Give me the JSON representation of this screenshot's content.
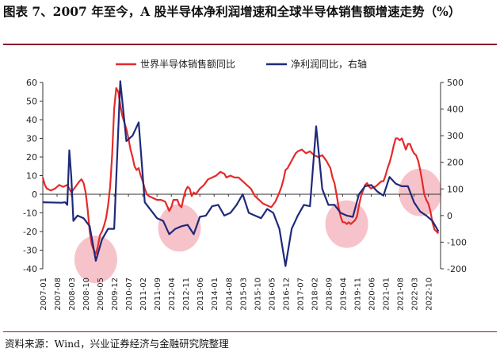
{
  "title": "图表 7、2007 年至今，A 股半导体净利润增速和全球半导体销售额增速走势（%）",
  "source": "资料来源：Wind，兴业证券经济与金融研究院整理",
  "chart_data": {
    "type": "line",
    "legend": [
      "世界半导体销售额同比",
      "净利润同比，右轴"
    ],
    "legend_placement": "top",
    "colors": {
      "sales": "#e52a2a",
      "profit": "#1e2a7a",
      "highlight": "#f6b8c1"
    },
    "left_axis": {
      "ylim": [
        -40,
        60
      ],
      "ticks": [
        -40,
        -30,
        -20,
        -10,
        0,
        10,
        20,
        30,
        40,
        50,
        60
      ]
    },
    "right_axis": {
      "ylim": [
        -200,
        500
      ],
      "ticks": [
        -200,
        -100,
        0,
        100,
        200,
        300,
        400,
        500
      ]
    },
    "x_ticks": [
      "2007-01",
      "2007-08",
      "2008-03",
      "2008-10",
      "2009-05",
      "2009-12",
      "2010-07",
      "2011-02",
      "2011-09",
      "2012-04",
      "2012-11",
      "2013-06",
      "2014-01",
      "2014-08",
      "2015-03",
      "2015-10",
      "2016-05",
      "2016-12",
      "2017-07",
      "2018-02",
      "2018-09",
      "2019-04",
      "2019-11",
      "2020-06",
      "2021-01",
      "2021-08",
      "2022-03",
      "2022-10"
    ],
    "highlight_circles": [
      {
        "x": "2009-03",
        "y_left": -35
      },
      {
        "x": "2012-08",
        "y_left": -18
      },
      {
        "x": "2019-06",
        "y_left": -16
      },
      {
        "x": "2022-06",
        "y_left": 1
      }
    ],
    "series": [
      {
        "name": "世界半导体销售额同比",
        "axis": "left",
        "points": [
          [
            "2007-01",
            9
          ],
          [
            "2007-02",
            5
          ],
          [
            "2007-03",
            3
          ],
          [
            "2007-05",
            2
          ],
          [
            "2007-07",
            3
          ],
          [
            "2007-09",
            5
          ],
          [
            "2007-11",
            4
          ],
          [
            "2008-01",
            5
          ],
          [
            "2008-03",
            1
          ],
          [
            "2008-05",
            4
          ],
          [
            "2008-07",
            7
          ],
          [
            "2008-08",
            8
          ],
          [
            "2008-09",
            6
          ],
          [
            "2008-10",
            1
          ],
          [
            "2008-11",
            -8
          ],
          [
            "2008-12",
            -20
          ],
          [
            "2009-01",
            -27
          ],
          [
            "2009-02",
            -30
          ],
          [
            "2009-03",
            -32
          ],
          [
            "2009-04",
            -28
          ],
          [
            "2009-05",
            -22
          ],
          [
            "2009-06",
            -20
          ],
          [
            "2009-07",
            -17
          ],
          [
            "2009-08",
            -13
          ],
          [
            "2009-09",
            -6
          ],
          [
            "2009-10",
            4
          ],
          [
            "2009-11",
            21
          ],
          [
            "2009-12",
            46
          ],
          [
            "2010-01",
            57
          ],
          [
            "2010-02",
            55
          ],
          [
            "2010-03",
            48
          ],
          [
            "2010-04",
            42
          ],
          [
            "2010-06",
            35
          ],
          [
            "2010-07",
            30
          ],
          [
            "2010-08",
            24
          ],
          [
            "2010-09",
            20
          ],
          [
            "2010-10",
            15
          ],
          [
            "2010-11",
            13
          ],
          [
            "2010-12",
            14
          ],
          [
            "2011-01",
            10
          ],
          [
            "2011-02",
            7
          ],
          [
            "2011-03",
            3
          ],
          [
            "2011-04",
            0
          ],
          [
            "2011-05",
            -1
          ],
          [
            "2011-07",
            -2
          ],
          [
            "2011-09",
            -3
          ],
          [
            "2011-11",
            -3
          ],
          [
            "2012-01",
            -4
          ],
          [
            "2012-03",
            -9
          ],
          [
            "2012-04",
            -7
          ],
          [
            "2012-05",
            -3
          ],
          [
            "2012-07",
            -3
          ],
          [
            "2012-08",
            -6
          ],
          [
            "2012-09",
            -7
          ],
          [
            "2012-10",
            -2
          ],
          [
            "2012-11",
            2
          ],
          [
            "2012-12",
            4
          ],
          [
            "2013-01",
            3
          ],
          [
            "2013-02",
            -1
          ],
          [
            "2013-03",
            1
          ],
          [
            "2013-04",
            0
          ],
          [
            "2013-06",
            3
          ],
          [
            "2013-08",
            5
          ],
          [
            "2013-10",
            8
          ],
          [
            "2013-12",
            9
          ],
          [
            "2014-02",
            10
          ],
          [
            "2014-04",
            12
          ],
          [
            "2014-06",
            11
          ],
          [
            "2014-07",
            9
          ],
          [
            "2014-09",
            10
          ],
          [
            "2014-11",
            9
          ],
          [
            "2015-01",
            9
          ],
          [
            "2015-03",
            7
          ],
          [
            "2015-05",
            5
          ],
          [
            "2015-07",
            3
          ],
          [
            "2015-09",
            -1
          ],
          [
            "2015-11",
            -3
          ],
          [
            "2016-01",
            -5
          ],
          [
            "2016-03",
            -6
          ],
          [
            "2016-05",
            -7
          ],
          [
            "2016-07",
            -4
          ],
          [
            "2016-09",
            1
          ],
          [
            "2016-10",
            4
          ],
          [
            "2016-11",
            8
          ],
          [
            "2016-12",
            13
          ],
          [
            "2017-01",
            14
          ],
          [
            "2017-02",
            16
          ],
          [
            "2017-04",
            20
          ],
          [
            "2017-05",
            22
          ],
          [
            "2017-06",
            23
          ],
          [
            "2017-08",
            24
          ],
          [
            "2017-10",
            22
          ],
          [
            "2017-12",
            23
          ],
          [
            "2018-02",
            21
          ],
          [
            "2018-04",
            20
          ],
          [
            "2018-06",
            21
          ],
          [
            "2018-08",
            18
          ],
          [
            "2018-10",
            14
          ],
          [
            "2018-11",
            9
          ],
          [
            "2018-12",
            6
          ],
          [
            "2019-01",
            0
          ],
          [
            "2019-02",
            -7
          ],
          [
            "2019-03",
            -12
          ],
          [
            "2019-04",
            -15
          ],
          [
            "2019-05",
            -15
          ],
          [
            "2019-06",
            -16
          ],
          [
            "2019-07",
            -15
          ],
          [
            "2019-08",
            -16
          ],
          [
            "2019-09",
            -15
          ],
          [
            "2019-10",
            -14
          ],
          [
            "2019-11",
            -12
          ],
          [
            "2019-12",
            -6
          ],
          [
            "2020-01",
            -1
          ],
          [
            "2020-02",
            2
          ],
          [
            "2020-03",
            5
          ],
          [
            "2020-04",
            6
          ],
          [
            "2020-05",
            4
          ],
          [
            "2020-06",
            3
          ],
          [
            "2020-07",
            4
          ],
          [
            "2020-08",
            4
          ],
          [
            "2020-09",
            5
          ],
          [
            "2020-10",
            6
          ],
          [
            "2020-11",
            7
          ],
          [
            "2020-12",
            7
          ],
          [
            "2021-01",
            10
          ],
          [
            "2021-02",
            14
          ],
          [
            "2021-03",
            17
          ],
          [
            "2021-04",
            21
          ],
          [
            "2021-05",
            26
          ],
          [
            "2021-06",
            30
          ],
          [
            "2021-07",
            30
          ],
          [
            "2021-08",
            29
          ],
          [
            "2021-09",
            30
          ],
          [
            "2021-10",
            27
          ],
          [
            "2021-11",
            24
          ],
          [
            "2021-12",
            27
          ],
          [
            "2022-01",
            27
          ],
          [
            "2022-02",
            24
          ],
          [
            "2022-03",
            22
          ],
          [
            "2022-04",
            21
          ],
          [
            "2022-05",
            18
          ],
          [
            "2022-06",
            13
          ],
          [
            "2022-07",
            7
          ],
          [
            "2022-08",
            0
          ],
          [
            "2022-09",
            -3
          ],
          [
            "2022-10",
            -5
          ],
          [
            "2022-11",
            -9
          ],
          [
            "2022-12",
            -15
          ],
          [
            "2023-01",
            -19
          ],
          [
            "2023-02",
            -20
          ],
          [
            "2023-03",
            -21
          ]
        ]
      },
      {
        "name": "净利润同比，右轴",
        "axis": "right",
        "points": [
          [
            "2007-01",
            50
          ],
          [
            "2007-10",
            48
          ],
          [
            "2007-12",
            50
          ],
          [
            "2008-01",
            40
          ],
          [
            "2008-02",
            245
          ],
          [
            "2008-03",
            145
          ],
          [
            "2008-04",
            -20
          ],
          [
            "2008-06",
            0
          ],
          [
            "2008-09",
            -10
          ],
          [
            "2008-12",
            -40
          ],
          [
            "2009-03",
            -170
          ],
          [
            "2009-06",
            -90
          ],
          [
            "2009-09",
            -50
          ],
          [
            "2009-12",
            -50
          ],
          [
            "2010-03",
            505
          ],
          [
            "2010-06",
            280
          ],
          [
            "2010-09",
            300
          ],
          [
            "2010-12",
            350
          ],
          [
            "2011-03",
            50
          ],
          [
            "2011-06",
            20
          ],
          [
            "2011-09",
            -10
          ],
          [
            "2011-12",
            -20
          ],
          [
            "2012-03",
            -70
          ],
          [
            "2012-06",
            -50
          ],
          [
            "2012-09",
            -40
          ],
          [
            "2012-12",
            -35
          ],
          [
            "2013-03",
            -70
          ],
          [
            "2013-06",
            -5
          ],
          [
            "2013-09",
            0
          ],
          [
            "2013-12",
            35
          ],
          [
            "2014-03",
            40
          ],
          [
            "2014-06",
            0
          ],
          [
            "2014-09",
            10
          ],
          [
            "2014-12",
            40
          ],
          [
            "2015-03",
            80
          ],
          [
            "2015-06",
            10
          ],
          [
            "2015-09",
            0
          ],
          [
            "2015-12",
            -10
          ],
          [
            "2016-03",
            25
          ],
          [
            "2016-06",
            10
          ],
          [
            "2016-09",
            -50
          ],
          [
            "2016-12",
            -190
          ],
          [
            "2017-03",
            -50
          ],
          [
            "2017-06",
            0
          ],
          [
            "2017-09",
            40
          ],
          [
            "2017-12",
            35
          ],
          [
            "2018-03",
            335
          ],
          [
            "2018-06",
            100
          ],
          [
            "2018-09",
            40
          ],
          [
            "2018-12",
            40
          ],
          [
            "2019-03",
            10
          ],
          [
            "2019-06",
            0
          ],
          [
            "2019-09",
            -5
          ],
          [
            "2019-12",
            80
          ],
          [
            "2020-03",
            110
          ],
          [
            "2020-06",
            115
          ],
          [
            "2020-09",
            90
          ],
          [
            "2020-12",
            75
          ],
          [
            "2021-03",
            145
          ],
          [
            "2021-06",
            120
          ],
          [
            "2021-09",
            110
          ],
          [
            "2021-12",
            110
          ],
          [
            "2022-03",
            50
          ],
          [
            "2022-06",
            15
          ],
          [
            "2022-09",
            0
          ],
          [
            "2022-12",
            -20
          ],
          [
            "2023-03",
            -60
          ]
        ]
      }
    ]
  }
}
